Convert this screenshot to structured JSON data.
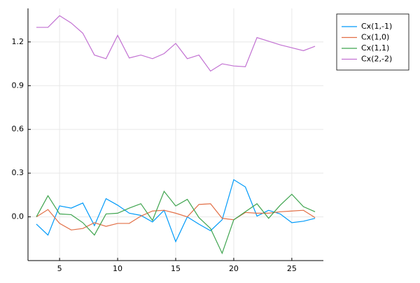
{
  "chart_data": {
    "type": "line",
    "x": [
      3,
      4,
      5,
      6,
      7,
      8,
      9,
      10,
      11,
      12,
      13,
      14,
      15,
      16,
      17,
      18,
      19,
      20,
      21,
      22,
      23,
      24,
      25,
      26,
      27
    ],
    "series": [
      {
        "name": "Cx(1,-1)",
        "color": "#009af9",
        "values": [
          -0.05,
          -0.125,
          0.075,
          0.06,
          0.095,
          -0.06,
          0.125,
          0.08,
          0.025,
          0.01,
          -0.035,
          0.045,
          -0.17,
          0.0,
          -0.05,
          -0.095,
          -0.02,
          0.255,
          0.205,
          0.005,
          0.045,
          0.02,
          -0.04,
          -0.03,
          -0.01
        ]
      },
      {
        "name": "Cx(1,0)",
        "color": "#e26f46",
        "values": [
          0.0,
          0.05,
          -0.045,
          -0.09,
          -0.08,
          -0.04,
          -0.065,
          -0.045,
          -0.045,
          0.005,
          0.04,
          0.045,
          0.025,
          0.0,
          0.085,
          0.09,
          -0.01,
          -0.02,
          0.03,
          0.025,
          0.025,
          0.035,
          0.04,
          0.045,
          -0.005
        ]
      },
      {
        "name": "Cx(1,1)",
        "color": "#3ea44e",
        "values": [
          0.0,
          0.145,
          0.02,
          0.015,
          -0.04,
          -0.125,
          0.02,
          0.025,
          0.06,
          0.09,
          -0.025,
          0.175,
          0.075,
          0.12,
          -0.005,
          -0.08,
          -0.25,
          -0.02,
          0.035,
          0.09,
          -0.01,
          0.08,
          0.155,
          0.07,
          0.035
        ]
      },
      {
        "name": "Cx(2,-2)",
        "color": "#c271d2",
        "values": [
          1.3,
          1.3,
          1.38,
          1.33,
          1.26,
          1.11,
          1.085,
          1.245,
          1.09,
          1.11,
          1.085,
          1.12,
          1.19,
          1.085,
          1.11,
          1.0,
          1.05,
          1.035,
          1.03,
          1.23,
          1.205,
          1.18,
          1.16,
          1.14,
          1.17
        ]
      }
    ],
    "xlim": [
      2.28,
      27.72
    ],
    "xticks": [
      5,
      10,
      15,
      20,
      25
    ],
    "ylim": [
      -0.3,
      1.43
    ],
    "yticks": [
      {
        "value": 0,
        "label": "0.0"
      },
      0.3,
      0.6,
      0.9,
      1.2
    ],
    "grid": true,
    "legend": "top-right"
  }
}
